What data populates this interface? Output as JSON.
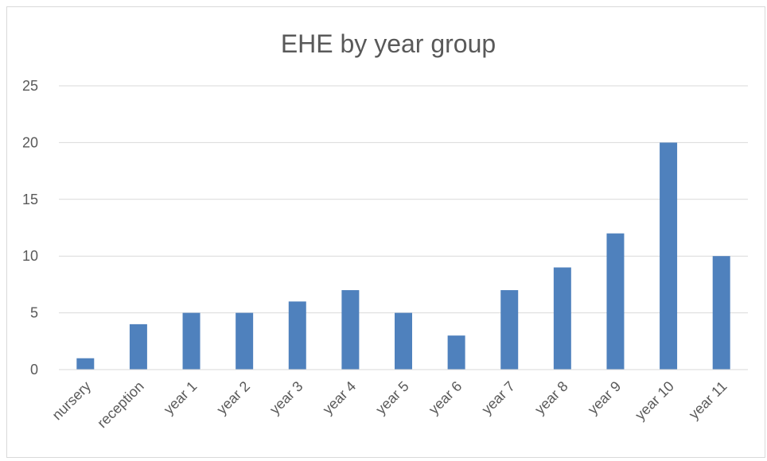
{
  "chart_data": {
    "type": "bar",
    "title": "EHE by year group",
    "xlabel": "",
    "ylabel": "",
    "categories": [
      "nursery",
      "reception",
      "year 1",
      "year 2",
      "year 3",
      "year 4",
      "year 5",
      "year 6",
      "year 7",
      "year 8",
      "year 9",
      "year 10",
      "year 11"
    ],
    "values": [
      1,
      4,
      5,
      5,
      6,
      7,
      5,
      3,
      7,
      9,
      12,
      20,
      10
    ],
    "ylim": [
      0,
      25
    ],
    "yticks": [
      0,
      5,
      10,
      15,
      20,
      25
    ],
    "grid": true,
    "legend": "none",
    "bar_color": "#4f81bd",
    "grid_color": "#d9d9d9",
    "text_color": "#595959"
  }
}
